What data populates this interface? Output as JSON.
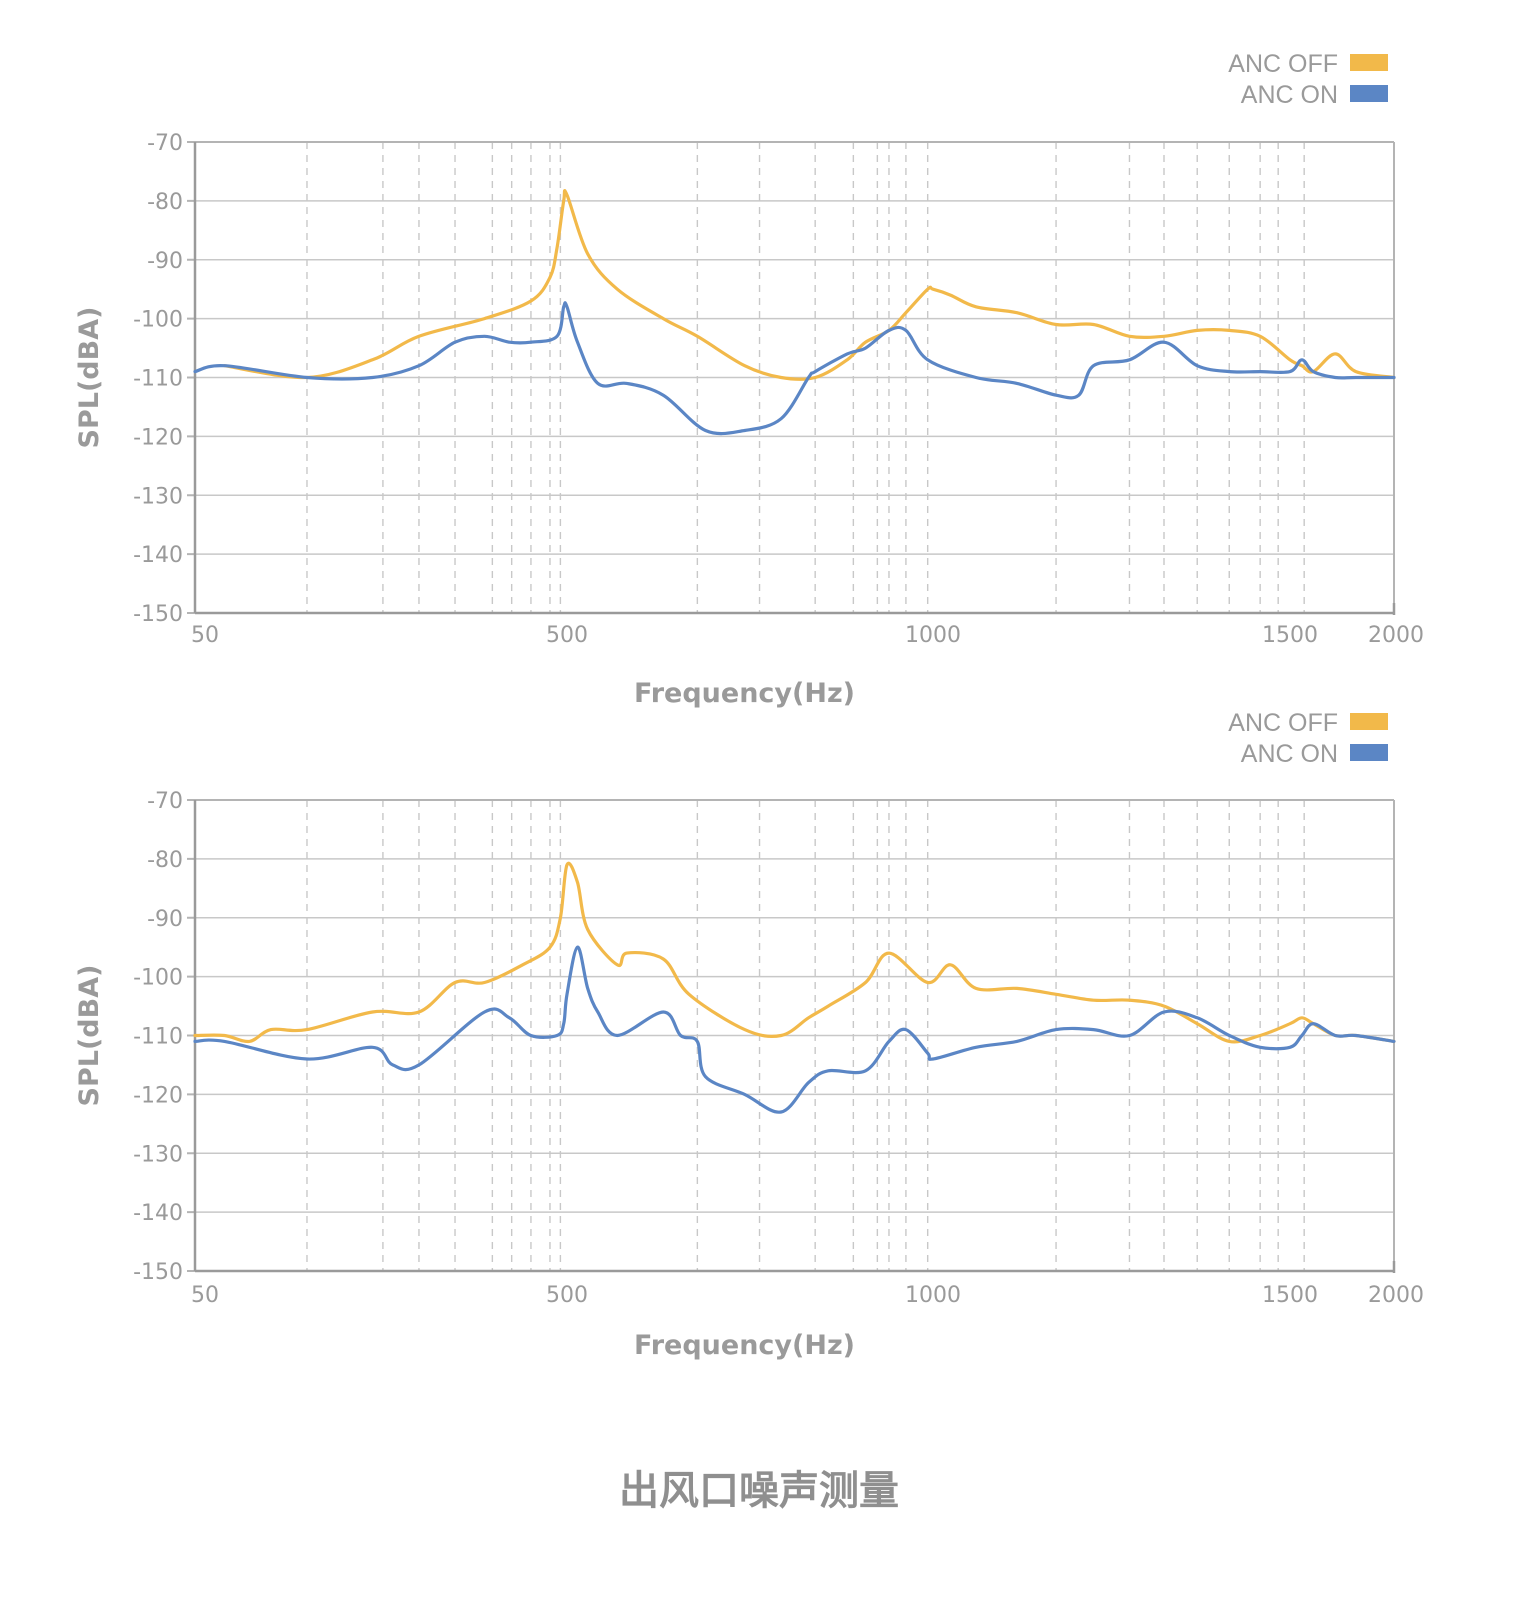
{
  "caption": "出风口噪声测量",
  "colors": {
    "anc_off": "#f2b94a",
    "anc_on": "#5b86c5",
    "text": "#9a9a9a",
    "grid": "#c8c8c8",
    "frame": "#b4b4b4"
  },
  "chart_data": [
    {
      "type": "line",
      "xlabel": "Frequency(Hz)",
      "ylabel": "SPL(dBA)",
      "x_ticks": [
        50,
        500,
        1000,
        1500,
        2000
      ],
      "y_ticks": [
        -70,
        -80,
        -90,
        -100,
        -110,
        -120,
        -130,
        -140,
        -150
      ],
      "ylim": [
        -150,
        -70
      ],
      "xlim": [
        50,
        2000
      ],
      "x_scale": "segmented log (1/3-octave style, labeled 50 / 500 / 1000 / 1500 / 2000)",
      "grid": "dashed vertical, solid horizontal",
      "legend_position": "top-right",
      "series": [
        {
          "name": "ANC OFF",
          "x": [
            60,
            100,
            150,
            200,
            300,
            400,
            450,
            470,
            490,
            500,
            520,
            550,
            600,
            640,
            700,
            750,
            800,
            850,
            880,
            920,
            950,
            990,
            1000,
            1020,
            1050,
            1100,
            1150,
            1200,
            1250,
            1300,
            1350,
            1400,
            1450,
            1500,
            1550,
            1600,
            1700,
            1800,
            2000
          ],
          "y": [
            -108,
            -110,
            -107,
            -103,
            -100,
            -97,
            -93,
            -88,
            -80,
            -79,
            -89,
            -95,
            -100,
            -103,
            -108,
            -110,
            -110,
            -107,
            -104,
            -102,
            -99,
            -95,
            -95,
            -96,
            -98,
            -99,
            -101,
            -101,
            -103,
            -103,
            -102,
            -102,
            -103,
            -107,
            -108,
            -109,
            -106,
            -109,
            -110
          ]
        },
        {
          "name": "ANC ON",
          "x": [
            50,
            60,
            100,
            150,
            200,
            250,
            300,
            350,
            400,
            470,
            490,
            500,
            510,
            530,
            560,
            600,
            650,
            700,
            750,
            790,
            800,
            850,
            880,
            920,
            950,
            990,
            1050,
            1100,
            1150,
            1180,
            1200,
            1250,
            1300,
            1350,
            1400,
            1450,
            1500,
            1550,
            1600,
            1700,
            1800,
            2000
          ],
          "y": [
            -109,
            -108,
            -110,
            -110,
            -108,
            -104,
            -103,
            -104,
            -104,
            -103,
            -98,
            -98,
            -104,
            -111,
            -111,
            -113,
            -119,
            -119,
            -117,
            -110,
            -109,
            -106,
            -105,
            -102,
            -102,
            -107,
            -110,
            -111,
            -113,
            -113,
            -108,
            -107,
            -104,
            -108,
            -109,
            -109,
            -109,
            -107,
            -109,
            -110,
            -110,
            -110
          ]
        }
      ]
    },
    {
      "type": "line",
      "xlabel": "Frequency(Hz)",
      "ylabel": "SPL(dBA)",
      "x_ticks": [
        50,
        500,
        1000,
        1500,
        2000
      ],
      "y_ticks": [
        -70,
        -80,
        -90,
        -100,
        -110,
        -120,
        -130,
        -140,
        -150
      ],
      "ylim": [
        -150,
        -70
      ],
      "xlim": [
        50,
        2000
      ],
      "x_scale": "segmented log (1/3-octave style, labeled 50 / 500 / 1000 / 1500 / 2000)",
      "grid": "dashed vertical, solid horizontal",
      "legend_position": "top-right",
      "series": [
        {
          "name": "ANC OFF",
          "x": [
            50,
            60,
            70,
            80,
            100,
            150,
            200,
            250,
            300,
            380,
            450,
            480,
            500,
            510,
            520,
            550,
            560,
            600,
            630,
            700,
            750,
            790,
            820,
            880,
            920,
            990,
            1020,
            1050,
            1100,
            1150,
            1200,
            1250,
            1300,
            1350,
            1400,
            1450,
            1500,
            1550,
            1600,
            1700,
            1800,
            2000
          ],
          "y": [
            -110,
            -110,
            -111,
            -109,
            -109,
            -106,
            -106,
            -101,
            -101,
            -98,
            -95,
            -90,
            -81,
            -84,
            -92,
            -98,
            -96,
            -97,
            -103,
            -109,
            -110,
            -107,
            -105,
            -101,
            -96,
            -101,
            -98,
            -102,
            -102,
            -103,
            -104,
            -104,
            -105,
            -108,
            -111,
            -110,
            -108,
            -107,
            -108,
            -110,
            -110,
            -111
          ]
        },
        {
          "name": "ANC ON",
          "x": [
            50,
            60,
            100,
            150,
            170,
            200,
            300,
            350,
            400,
            470,
            490,
            500,
            510,
            520,
            530,
            550,
            600,
            620,
            640,
            650,
            700,
            750,
            790,
            820,
            880,
            920,
            950,
            990,
            1000,
            1050,
            1100,
            1150,
            1200,
            1250,
            1300,
            1350,
            1400,
            1450,
            1500,
            1550,
            1600,
            1700,
            1800,
            2000
          ],
          "y": [
            -111,
            -111,
            -114,
            -112,
            -115,
            -115,
            -106,
            -107,
            -110,
            -110,
            -108,
            -103,
            -95,
            -102,
            -106,
            -110,
            -106,
            -110,
            -111,
            -117,
            -120,
            -123,
            -118,
            -116,
            -116,
            -111,
            -109,
            -113,
            -114,
            -112,
            -111,
            -109,
            -109,
            -110,
            -106,
            -107,
            -110,
            -112,
            -112,
            -110,
            -108,
            -110,
            -110,
            -111
          ]
        }
      ]
    }
  ]
}
